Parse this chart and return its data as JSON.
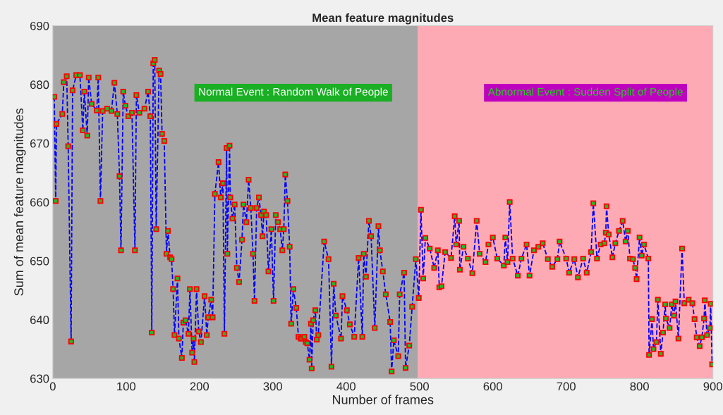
{
  "chart_data": {
    "type": "line",
    "title": "Mean feature magnitudes",
    "xlabel": "Number of frames",
    "ylabel": "Sum of mean feature magnitudes",
    "xlim": [
      0,
      900
    ],
    "xticks": [
      0,
      100,
      200,
      300,
      400,
      500,
      600,
      700,
      800,
      900
    ],
    "ylim": [
      630,
      690
    ],
    "yticks": [
      630,
      640,
      650,
      660,
      670,
      680,
      690
    ],
    "grid": false,
    "legend": false,
    "marker": "square",
    "line_style": "dashed",
    "bands": [
      {
        "axis": "x",
        "from": 0,
        "to": 498,
        "color": "#a6a6a6",
        "label": "Normal Event : Random Walk of People"
      },
      {
        "axis": "x",
        "from": 498,
        "to": 900,
        "color": "#fdaab4",
        "label": "Abnormal Event : Sudden Split of People"
      }
    ],
    "series": [
      {
        "color": "#0000ff",
        "x": [
          2,
          4,
          5,
          13,
          15,
          19,
          21,
          25,
          27,
          32,
          37,
          41,
          43,
          47,
          49,
          53,
          60,
          62,
          65,
          68,
          74,
          80,
          84,
          88,
          91,
          93,
          96,
          99,
          103,
          108,
          112,
          114,
          118,
          125,
          130,
          133,
          135,
          137,
          139,
          141,
          145,
          147,
          149,
          152,
          155,
          157,
          160,
          162,
          164,
          166,
          170,
          172,
          176,
          178,
          181,
          185,
          187,
          190,
          192,
          193,
          196,
          199,
          202,
          207,
          210,
          212,
          216,
          218,
          221,
          226,
          229,
          232,
          234,
          237,
          238,
          241,
          242,
          245,
          248,
          251,
          254,
          258,
          260,
          264,
          267,
          270,
          273,
          275,
          278,
          281,
          284,
          286,
          288,
          291,
          294,
          298,
          301,
          304,
          307,
          310,
          313,
          315,
          317,
          320,
          323,
          325,
          328,
          332,
          335,
          338,
          340,
          343,
          345,
          347,
          350,
          352,
          353,
          355,
          358,
          360,
          362,
          370,
          376,
          380,
          383,
          386,
          393,
          395,
          401,
          405,
          411,
          417,
          422,
          424,
          427,
          431,
          434,
          439,
          444,
          446,
          450,
          454,
          460,
          462,
          465,
          471,
          473,
          479,
          481,
          486,
          490,
          495,
          499,
          502,
          505,
          508,
          514,
          520,
          525,
          527,
          530,
          535,
          543,
          548,
          550,
          554,
          555,
          560,
          566,
          572,
          578,
          582,
          590,
          594,
          600,
          606,
          615,
          617,
          620,
          623,
          627,
          634,
          639,
          646,
          650,
          656,
          662,
          668,
          675,
          681,
          688,
          691,
          700,
          704,
          711,
          716,
          723,
          728,
          734,
          737,
          742,
          747,
          752,
          754,
          755,
          758,
          763,
          767,
          772,
          777,
          781,
          784,
          787,
          791,
          794,
          796,
          800,
          803,
          806,
          812,
          813,
          817,
          819,
          823,
          825,
          829,
          832,
          835,
          836,
          841,
          844,
          847,
          849,
          853,
          858,
          861,
          867,
          872,
          875,
          878,
          882,
          885,
          888,
          889,
          892,
          896,
          897,
          899
        ],
        "values": [
          677.9,
          660.2,
          673.3,
          675,
          680.4,
          681.4,
          669.5,
          636.3,
          679,
          681.6,
          681.6,
          672.2,
          678.8,
          671.3,
          681.2,
          676.7,
          675.6,
          681.2,
          660.2,
          675.5,
          675.9,
          675.5,
          680.3,
          675,
          664.4,
          651.8,
          678.8,
          676.4,
          674.6,
          675.2,
          651.8,
          678.2,
          675.2,
          675.9,
          678.8,
          674.6,
          637.8,
          683.6,
          684.2,
          655.4,
          682.4,
          681.8,
          671.6,
          670.4,
          651.2,
          655.1,
          650.6,
          650.3,
          645.2,
          637.4,
          647,
          636.8,
          633.5,
          639.5,
          639.9,
          637.6,
          645.2,
          634.4,
          636.8,
          632.8,
          645.2,
          638,
          636.2,
          644,
          637.4,
          640.4,
          643.4,
          640.4,
          661.4,
          666.8,
          660.8,
          663.2,
          637.6,
          669.2,
          651.2,
          669.6,
          660.8,
          657.2,
          659.6,
          648.8,
          646.4,
          653.6,
          659.6,
          656.6,
          663.8,
          659,
          651.2,
          643.2,
          659,
          660.8,
          657.8,
          654.2,
          658.4,
          657.8,
          648.2,
          655.4,
          643.2,
          657.8,
          656.6,
          655.4,
          651.8,
          655.4,
          664.7,
          660.2,
          652.4,
          639.3,
          645.2,
          642,
          637.1,
          636.8,
          636.8,
          637.1,
          636.2,
          636,
          633.2,
          639.3,
          631.7,
          639.9,
          641.6,
          636.6,
          637.4,
          653.3,
          650.3,
          632,
          646.1,
          640.7,
          636.8,
          644,
          641.6,
          639.2,
          637.1,
          650.5,
          637.1,
          651.2,
          647.3,
          656.8,
          654.2,
          638.6,
          655.9,
          651.8,
          648.2,
          644.3,
          639.6,
          631.2,
          636.5,
          633.8,
          644.3,
          648,
          631.8,
          635.6,
          642.2,
          650.3,
          643.7,
          658.7,
          647,
          653.9,
          652.1,
          648.8,
          651.8,
          645.5,
          645.7,
          651.5,
          650.5,
          657.6,
          652.8,
          656.8,
          648.5,
          652.4,
          650.4,
          647.9,
          656.8,
          651.2,
          649.8,
          652.8,
          654,
          650.4,
          649.2,
          654,
          649.8,
          660,
          650.4,
          647.5,
          650.4,
          652.8,
          647.5,
          651.8,
          652.4,
          653,
          650.3,
          649,
          650.3,
          653.3,
          650.4,
          648,
          650.3,
          647.2,
          650.4,
          648,
          651.5,
          659.8,
          650.4,
          652.8,
          653,
          654.8,
          659.3,
          654.5,
          650.6,
          653,
          655.1,
          656.8,
          653.3,
          655.1,
          650.4,
          650.3,
          648.8,
          646.9,
          654,
          650.9,
          652.8,
          650.4,
          634,
          640.1,
          635,
          636.2,
          643.4,
          634.2,
          637.8,
          642.6,
          640.2,
          638.6,
          642.6,
          640.7,
          643.1,
          636.8,
          652.1,
          642.8,
          643.4,
          642.8,
          640.1,
          637,
          635.5,
          637,
          640.2,
          643.3,
          637.4,
          638.6,
          642.7,
          632.4
        ]
      }
    ]
  }
}
